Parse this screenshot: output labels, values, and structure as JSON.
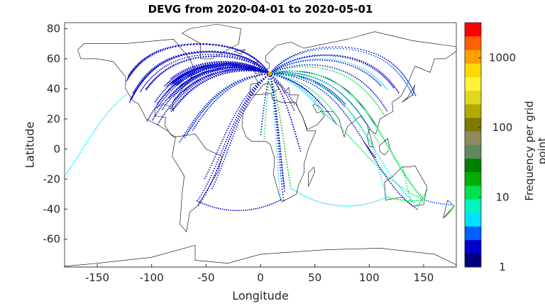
{
  "chart_data": {
    "type": "scatter",
    "title": "DEVG from 2020-04-01 to 2020-05-01",
    "xlabel": "Longitude",
    "ylabel": "Latitude",
    "xlim": [
      -180,
      180
    ],
    "ylim": [
      -78.5,
      84
    ],
    "xticks": [
      -150,
      -100,
      -50,
      0,
      50,
      100,
      150
    ],
    "yticks": [
      80,
      60,
      40,
      20,
      0,
      -20,
      -40,
      -60
    ],
    "colorbar": {
      "label": "Frequency per grid point",
      "scale": "log",
      "range": [
        1,
        3200
      ],
      "ticks": [
        "1",
        "10",
        "100",
        "1000"
      ],
      "colors": [
        "#00007f",
        "#0000cc",
        "#0060ff",
        "#00e0ff",
        "#00f5c0",
        "#00e050",
        "#00b000",
        "#007f00",
        "#5f8860",
        "#8f8860",
        "#7f7800",
        "#b0aa00",
        "#e0d820",
        "#fff23a",
        "#ffd800",
        "#ffa000",
        "#ff5f00",
        "#ff0000"
      ]
    },
    "hub": [
      8.6,
      50.0
    ],
    "tracks": [
      {
        "to": [
          -74,
          40.7
        ],
        "color": "#0000cc",
        "n": 6
      },
      {
        "to": [
          -88,
          42
        ],
        "color": "#0000cc",
        "n": 5
      },
      {
        "to": [
          -118,
          34
        ],
        "color": "#0000cc",
        "n": 4
      },
      {
        "to": [
          -122,
          47
        ],
        "color": "#0000cc",
        "n": 3
      },
      {
        "to": [
          -105,
          40
        ],
        "color": "#0000cc",
        "n": 3
      },
      {
        "to": [
          -95,
          30
        ],
        "color": "#0000cc",
        "n": 4
      },
      {
        "to": [
          -79,
          43.7
        ],
        "color": "#0060ff",
        "n": 4
      },
      {
        "to": [
          -84,
          34
        ],
        "color": "#0000cc",
        "n": 4
      },
      {
        "to": [
          -80,
          26
        ],
        "color": "#0000cc",
        "n": 3
      },
      {
        "to": [
          -99,
          19.4
        ],
        "color": "#0000cc",
        "n": 3
      },
      {
        "to": [
          -46,
          -23.5
        ],
        "color": "#0000cc",
        "n": 3
      },
      {
        "to": [
          -58,
          -34.6
        ],
        "color": "#0000cc",
        "n": 2
      },
      {
        "to": [
          -74,
          4.7
        ],
        "color": "#0000cc",
        "n": 2
      },
      {
        "to": [
          -67,
          10.5
        ],
        "color": "#0060ff",
        "n": 2
      },
      {
        "to": [
          28,
          -26
        ],
        "color": "#00b000",
        "n": 3
      },
      {
        "to": [
          18.4,
          -33.9
        ],
        "color": "#00e0ff",
        "n": 2
      },
      {
        "to": [
          3.4,
          6.5
        ],
        "color": "#00e050",
        "n": 2
      },
      {
        "to": [
          36.8,
          -1.3
        ],
        "color": "#0000cc",
        "n": 2
      },
      {
        "to": [
          31,
          30
        ],
        "color": "#0000cc",
        "n": 2
      },
      {
        "to": [
          55.3,
          25.3
        ],
        "color": "#00e0ff",
        "n": 3
      },
      {
        "to": [
          77,
          28.6
        ],
        "color": "#0000cc",
        "n": 2
      },
      {
        "to": [
          73,
          19
        ],
        "color": "#00e050",
        "n": 2
      },
      {
        "to": [
          116,
          40
        ],
        "color": "#00e0ff",
        "n": 2
      },
      {
        "to": [
          140,
          35.7
        ],
        "color": "#0060ff",
        "n": 2
      },
      {
        "to": [
          127,
          37.5
        ],
        "color": "#0000cc",
        "n": 2
      },
      {
        "to": [
          114,
          22.3
        ],
        "color": "#00e050",
        "n": 2
      },
      {
        "to": [
          104,
          1.3
        ],
        "color": "#00e050",
        "n": 2
      },
      {
        "to": [
          100.5,
          13.7
        ],
        "color": "#0060ff",
        "n": 2
      },
      {
        "to": [
          151,
          -33.9
        ],
        "color": "#00e050",
        "n": 2
      },
      {
        "to": [
          145,
          -37.8
        ],
        "color": "#00e0ff",
        "n": 2
      }
    ],
    "other_tracks": [
      {
        "from": [
          -180,
          -18
        ],
        "to": [
          -122,
          37
        ],
        "color": "#00e0ff"
      },
      {
        "from": [
          28,
          -26
        ],
        "to": [
          116,
          -32
        ],
        "color": "#00e0ff"
      },
      {
        "from": [
          -58,
          -34.6
        ],
        "to": [
          18.4,
          -33.9
        ],
        "color": "#0000cc"
      },
      {
        "from": [
          116,
          -32
        ],
        "to": [
          151,
          -33.9
        ],
        "color": "#00e050"
      },
      {
        "from": [
          153,
          -27.5
        ],
        "to": [
          145,
          -37.8
        ],
        "color": "#00b000"
      },
      {
        "from": [
          130.8,
          -12.4
        ],
        "to": [
          138.6,
          -34.9
        ],
        "color": "#00e050"
      },
      {
        "from": [
          151,
          -33.9
        ],
        "to": [
          174.8,
          -37
        ],
        "color": "#0060ff"
      },
      {
        "from": [
          55.3,
          25.3
        ],
        "to": [
          151,
          -33.9
        ],
        "color": "#00e050"
      },
      {
        "from": [
          104,
          1.3
        ],
        "to": [
          116,
          -32
        ],
        "color": "#00e0ff"
      },
      {
        "from": [
          178,
          -38
        ],
        "to": [
          170,
          -45
        ],
        "color": "#00b000"
      }
    ]
  }
}
